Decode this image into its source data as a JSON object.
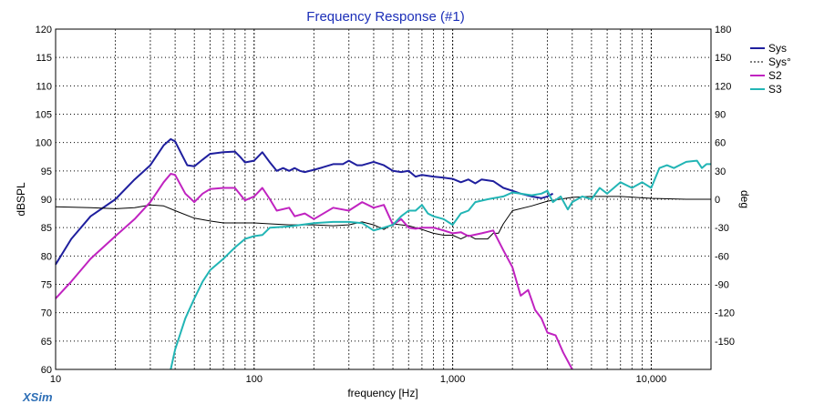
{
  "app": {
    "brand": "XSim"
  },
  "chart_data": {
    "type": "line",
    "title": "Frequency Response (#1)",
    "xlabel": "frequency [Hz]",
    "ylabel": "dBSPL",
    "y2label": "deg",
    "xscale": "log",
    "xlim": [
      10,
      20000
    ],
    "ylim": [
      60,
      120
    ],
    "y2lim": [
      -180,
      180
    ],
    "xticks": [
      10,
      100,
      1000,
      10000
    ],
    "xtick_labels": [
      "10",
      "100",
      "1,000",
      "10,000"
    ],
    "yticks": [
      60,
      65,
      70,
      75,
      80,
      85,
      90,
      95,
      100,
      105,
      110,
      115,
      120
    ],
    "y2ticks": [
      -150,
      -120,
      -90,
      -60,
      -30,
      0,
      30,
      60,
      90,
      120,
      150,
      180
    ],
    "grid": true,
    "legend_position": "top-right",
    "series": [
      {
        "name": "Sys",
        "axis": "left",
        "style": "solid",
        "color": "#1f1f9e",
        "x": [
          10,
          12,
          15,
          20,
          25,
          30,
          35,
          38,
          40,
          43,
          46,
          50,
          55,
          60,
          70,
          80,
          85,
          90,
          100,
          110,
          120,
          130,
          140,
          150,
          160,
          170,
          180,
          200,
          220,
          250,
          280,
          300,
          330,
          350,
          400,
          450,
          500,
          550,
          600,
          650,
          700,
          800,
          900,
          1000,
          1100,
          1200,
          1300,
          1400,
          1600,
          1800,
          2000,
          2200,
          2500,
          2800,
          3000,
          3200
        ],
        "y": [
          78.5,
          83,
          87,
          90,
          93.5,
          96,
          99.5,
          100.6,
          100.2,
          98,
          96,
          95.8,
          97,
          98,
          98.3,
          98.4,
          97.5,
          96.5,
          96.8,
          98.3,
          96.5,
          95,
          95.5,
          95,
          95.5,
          95,
          94.8,
          95.2,
          95.6,
          96.2,
          96.2,
          96.8,
          96,
          96,
          96.6,
          96,
          95,
          94.8,
          95,
          94,
          94.3,
          94,
          93.8,
          93.6,
          93,
          93.5,
          92.8,
          93.5,
          93.2,
          92,
          91.5,
          91,
          90.5,
          90.2,
          90.5,
          91
        ]
      },
      {
        "name": "Sys°",
        "axis": "right",
        "style": "dashed",
        "color": "#000000",
        "x": [
          10,
          15,
          20,
          25,
          30,
          35,
          40,
          50,
          60,
          70,
          80,
          100,
          120,
          150,
          200,
          250,
          300,
          350,
          400,
          450,
          500,
          600,
          700,
          800,
          900,
          1000,
          1100,
          1200,
          1300,
          1500,
          1600,
          1700,
          1800,
          2000,
          2500,
          3000,
          4000,
          5000,
          7000,
          10000,
          15000,
          20000
        ],
        "y": [
          -8,
          -9,
          -10,
          -9,
          -6,
          -7,
          -12,
          -20,
          -23,
          -25,
          -25,
          -25,
          -26,
          -27,
          -27,
          -28,
          -27,
          -24,
          -27,
          -32,
          -26,
          -28,
          -32,
          -36,
          -38,
          -38,
          -42,
          -38,
          -42,
          -42,
          -36,
          -36,
          -26,
          -12,
          -7,
          -2,
          2,
          3,
          3,
          1,
          0,
          0
        ]
      },
      {
        "name": "S2",
        "axis": "left",
        "style": "solid",
        "color": "#c023c0",
        "x": [
          10,
          12,
          15,
          20,
          25,
          30,
          35,
          38,
          40,
          45,
          50,
          55,
          60,
          70,
          80,
          90,
          100,
          110,
          120,
          130,
          150,
          160,
          180,
          200,
          250,
          300,
          350,
          400,
          450,
          500,
          550,
          600,
          650,
          700,
          800,
          900,
          1000,
          1100,
          1200,
          1400,
          1600,
          1800,
          2000,
          2200,
          2400,
          2600,
          2800,
          3000,
          3300,
          3600,
          4000
        ],
        "y": [
          72.5,
          75.5,
          79.5,
          83.5,
          86.5,
          89.5,
          93,
          94.5,
          94.3,
          91,
          89.5,
          91,
          91.8,
          92,
          92,
          89.8,
          90.5,
          92,
          90,
          88,
          88.5,
          87,
          87.5,
          86.5,
          88.5,
          88,
          89.5,
          88.5,
          89,
          85.5,
          86.5,
          85,
          84.8,
          85,
          85,
          84.5,
          84,
          84.2,
          83.5,
          84,
          84.5,
          81,
          78,
          73,
          74,
          70.5,
          69,
          66.5,
          66,
          63,
          60
        ]
      },
      {
        "name": "S3",
        "axis": "left",
        "style": "solid",
        "color": "#22b5b5",
        "x": [
          38,
          40,
          45,
          50,
          55,
          60,
          70,
          80,
          90,
          100,
          110,
          120,
          150,
          200,
          250,
          300,
          350,
          400,
          450,
          500,
          550,
          600,
          650,
          700,
          750,
          800,
          900,
          1000,
          1100,
          1200,
          1300,
          1500,
          1800,
          2000,
          2500,
          2800,
          3000,
          3200,
          3500,
          3800,
          4000,
          4500,
          5000,
          5500,
          6000,
          7000,
          8000,
          9000,
          10000,
          11000,
          12000,
          13000,
          15000,
          17000,
          18000,
          19000,
          20000
        ],
        "y": [
          60,
          63.5,
          69,
          72.5,
          75.5,
          77.5,
          79.5,
          81.5,
          83,
          83.5,
          83.7,
          85,
          85.2,
          85.8,
          86,
          86,
          85.8,
          84.5,
          85,
          85.5,
          87,
          88,
          88,
          89,
          87.5,
          87,
          86.5,
          85.5,
          87.5,
          88,
          89.5,
          90,
          90.5,
          91.2,
          90.7,
          91,
          91.5,
          89.5,
          90.5,
          88.2,
          89.5,
          90.5,
          90,
          92,
          91,
          93,
          92,
          93,
          92,
          95.5,
          96,
          95.5,
          96.6,
          96.8,
          95.5,
          96.2,
          96.2
        ]
      }
    ]
  }
}
